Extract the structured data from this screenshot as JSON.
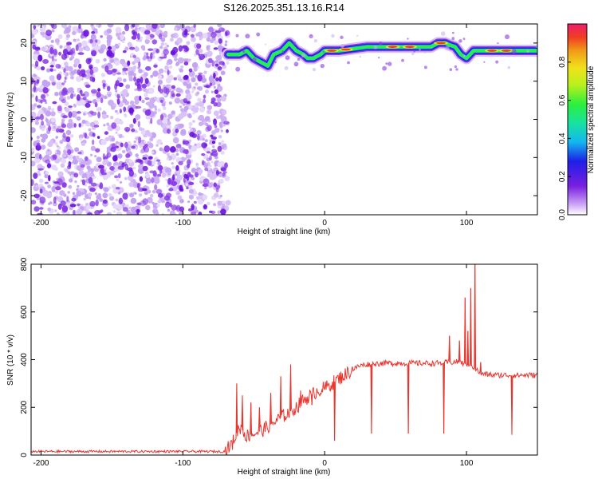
{
  "title": "S126.2025.351.13.16.R14",
  "colors": {
    "accent_line": "#e8362f",
    "signal_purple": "#7a1fe0"
  },
  "chart_data": [
    {
      "type": "heatmap",
      "xlabel": "Height of straight line (km)",
      "ylabel": "Frequency (Hz)",
      "xlim": [
        -207,
        150
      ],
      "ylim": [
        -25,
        25
      ],
      "xticks": [
        -200,
        -100,
        0,
        100
      ],
      "yticks": [
        20,
        10,
        0,
        -10,
        -20
      ],
      "xtick_labels": [
        "-200",
        "-100",
        "0",
        "100"
      ],
      "ytick_labels": [
        "20",
        "10",
        "0",
        "-10",
        "-20"
      ],
      "noise_region_x": [
        -207,
        -68
      ],
      "ridge": {
        "x": [
          -68,
          -60,
          -55,
          -50,
          -45,
          -40,
          -36,
          -30,
          -25,
          -20,
          -15,
          -12,
          -8,
          -3,
          0,
          5,
          10,
          20,
          30,
          40,
          50,
          60,
          70,
          75,
          80,
          85,
          88,
          92,
          96,
          100,
          105,
          110,
          120,
          130,
          140,
          150
        ],
        "y": [
          17,
          17,
          18,
          16,
          15,
          14,
          17,
          18,
          20,
          18,
          17,
          16,
          16,
          17,
          18,
          18,
          18,
          18.5,
          19,
          19,
          19,
          19,
          19,
          19,
          20,
          20,
          19.5,
          19,
          17,
          16,
          18,
          18,
          18,
          18,
          18,
          18
        ]
      },
      "colorbar": {
        "label": "Normalized spectral amplitude",
        "ticks": [
          0.0,
          0.2,
          0.4,
          0.6,
          0.8
        ],
        "tick_labels": [
          "0.0",
          "0.2",
          "0.4",
          "0.6",
          "0.8"
        ],
        "range": [
          0,
          1
        ],
        "colormap": "rainbow"
      }
    },
    {
      "type": "line",
      "xlabel": "Height of straight line (km)",
      "ylabel": "SNR (10 * v/v)",
      "xlim": [
        -207,
        150
      ],
      "ylim": [
        0,
        800
      ],
      "xticks": [
        -200,
        -100,
        0,
        100
      ],
      "yticks": [
        0,
        200,
        400,
        600,
        800
      ],
      "xtick_labels": [
        "-200",
        "-100",
        "0",
        "100"
      ],
      "ytick_labels": [
        "0",
        "200",
        "400",
        "600",
        "800"
      ],
      "series": [
        {
          "color": "#e8362f",
          "x": [
            -207,
            -180,
            -150,
            -120,
            -90,
            -70,
            -65,
            -60,
            -55,
            -50,
            -45,
            -40,
            -35,
            -30,
            -25,
            -20,
            -15,
            -10,
            -5,
            0,
            5,
            10,
            15,
            20,
            25,
            30,
            40,
            50,
            60,
            70,
            80,
            90,
            95,
            100,
            105,
            110,
            120,
            130,
            140,
            150
          ],
          "y": [
            15,
            15,
            15,
            15,
            15,
            15,
            50,
            120,
            80,
            90,
            100,
            120,
            140,
            160,
            180,
            200,
            230,
            250,
            270,
            280,
            300,
            320,
            340,
            360,
            375,
            380,
            385,
            385,
            385,
            385,
            385,
            390,
            390,
            380,
            370,
            340,
            335,
            335,
            335,
            335
          ]
        }
      ],
      "spikes": [
        {
          "x": -62,
          "y": 300
        },
        {
          "x": -58,
          "y": 250
        },
        {
          "x": -52,
          "y": 220
        },
        {
          "x": -46,
          "y": 200
        },
        {
          "x": -38,
          "y": 260
        },
        {
          "x": -31,
          "y": 330
        },
        {
          "x": -24,
          "y": 380
        },
        {
          "x": -17,
          "y": 270
        },
        {
          "x": -9,
          "y": 210
        },
        {
          "x": 7,
          "y": 60
        },
        {
          "x": 33,
          "y": 90
        },
        {
          "x": 59,
          "y": 90
        },
        {
          "x": 84,
          "y": 90
        },
        {
          "x": 88,
          "y": 500
        },
        {
          "x": 95,
          "y": 480
        },
        {
          "x": 99,
          "y": 660
        },
        {
          "x": 101,
          "y": 520
        },
        {
          "x": 103,
          "y": 700
        },
        {
          "x": 106,
          "y": 810
        },
        {
          "x": 110,
          "y": 390
        },
        {
          "x": 132,
          "y": 85
        }
      ]
    }
  ]
}
